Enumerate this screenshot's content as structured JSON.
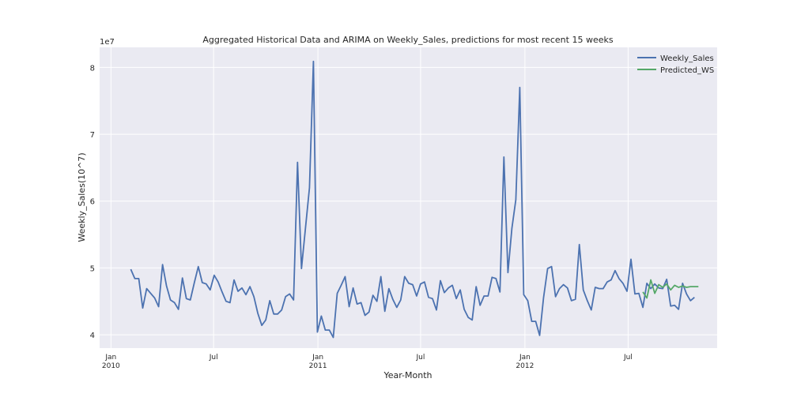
{
  "chart_data": {
    "type": "line",
    "title": "Aggregated Historical Data and ARIMA on Weekly_Sales, predictions for most recent 15 weeks",
    "xlabel": "Year-Month",
    "ylabel": "Weekly_Sales(10^7)",
    "y_offset_label": "1e7",
    "ylim": [
      3.8,
      8.3
    ],
    "y_ticks": [
      4,
      5,
      6,
      7,
      8
    ],
    "x_ticks": [
      {
        "date": "2010-01-01",
        "label": "Jan",
        "sublabel": "2010"
      },
      {
        "date": "2010-07-01",
        "label": "Jul",
        "sublabel": ""
      },
      {
        "date": "2011-01-01",
        "label": "Jan",
        "sublabel": "2011"
      },
      {
        "date": "2011-07-01",
        "label": "Jul",
        "sublabel": ""
      },
      {
        "date": "2012-01-01",
        "label": "Jan",
        "sublabel": "2012"
      },
      {
        "date": "2012-07-01",
        "label": "Jul",
        "sublabel": ""
      }
    ],
    "xlim": [
      "2009-12-12",
      "2012-12-05"
    ],
    "grid": true,
    "legend_position": "top-right",
    "series": [
      {
        "name": "Weekly_Sales",
        "color": "#4c72b0",
        "start_date": "2010-02-05",
        "interval_days": 7,
        "values": [
          4.98,
          4.84,
          4.84,
          4.4,
          4.69,
          4.62,
          4.55,
          4.42,
          5.05,
          4.73,
          4.52,
          4.48,
          4.38,
          4.85,
          4.54,
          4.52,
          4.78,
          5.02,
          4.78,
          4.76,
          4.67,
          4.89,
          4.79,
          4.64,
          4.5,
          4.48,
          4.82,
          4.65,
          4.7,
          4.6,
          4.72,
          4.57,
          4.32,
          4.14,
          4.22,
          4.51,
          4.31,
          4.31,
          4.37,
          4.57,
          4.61,
          4.52,
          6.58,
          4.99,
          5.59,
          6.2,
          8.09,
          4.04,
          4.28,
          4.07,
          4.07,
          3.96,
          4.62,
          4.74,
          4.87,
          4.42,
          4.7,
          4.46,
          4.48,
          4.29,
          4.34,
          4.59,
          4.5,
          4.87,
          4.35,
          4.69,
          4.53,
          4.41,
          4.52,
          4.87,
          4.77,
          4.75,
          4.58,
          4.76,
          4.79,
          4.56,
          4.54,
          4.37,
          4.81,
          4.63,
          4.7,
          4.74,
          4.54,
          4.67,
          4.38,
          4.26,
          4.22,
          4.72,
          4.44,
          4.58,
          4.58,
          4.86,
          4.84,
          4.64,
          6.66,
          4.93,
          5.59,
          6.02,
          7.7,
          4.6,
          4.51,
          4.2,
          4.2,
          3.99,
          4.56,
          4.99,
          5.02,
          4.57,
          4.69,
          4.75,
          4.7,
          4.51,
          4.53,
          5.35,
          4.67,
          4.51,
          4.37,
          4.71,
          4.69,
          4.69,
          4.79,
          4.82,
          4.96,
          4.84,
          4.77,
          4.65,
          5.13,
          4.61,
          4.62,
          4.41,
          4.77,
          4.69,
          4.76,
          4.7,
          4.69,
          4.83,
          4.43,
          4.44,
          4.38,
          4.77,
          4.61,
          4.51,
          4.56
        ]
      },
      {
        "name": "Predicted_WS",
        "color": "#55a868",
        "start_date": "2012-07-27",
        "interval_days": 7,
        "values": [
          4.64,
          4.55,
          4.82,
          4.62,
          4.75,
          4.71,
          4.76,
          4.67,
          4.74,
          4.71,
          4.73,
          4.71,
          4.72,
          4.72,
          4.72
        ]
      }
    ]
  }
}
